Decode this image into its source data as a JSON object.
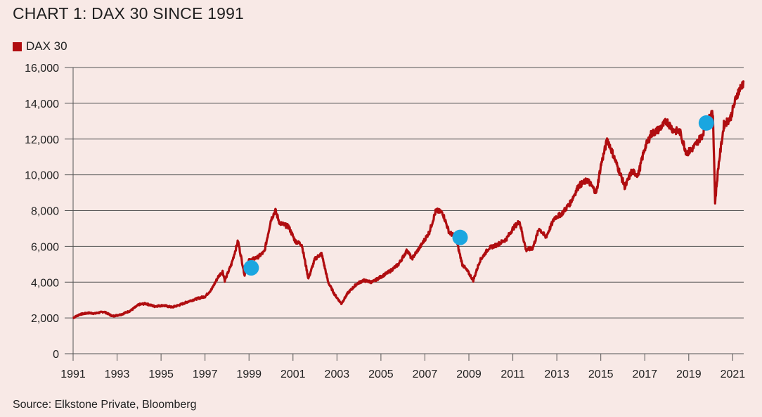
{
  "colors": {
    "background": "#f8e9e6",
    "series": "#b00d10",
    "marker": "#1aa6e0",
    "grid": "#555555"
  },
  "chart_data": {
    "type": "line",
    "title": "CHART 1: DAX 30 SINCE 1991",
    "source": "Source: Elkstone Private, Bloomberg",
    "xlabel": "",
    "ylabel": "",
    "xlim": [
      1991,
      2021.5
    ],
    "ylim": [
      0,
      16000
    ],
    "x_ticks": [
      1991,
      1993,
      1995,
      1997,
      1999,
      2001,
      2003,
      2005,
      2007,
      2009,
      2011,
      2013,
      2015,
      2017,
      2019,
      2021
    ],
    "y_ticks": [
      0,
      2000,
      4000,
      6000,
      8000,
      10000,
      12000,
      14000,
      16000
    ],
    "y_tick_labels": [
      "0",
      "2,000",
      "4,000",
      "6,000",
      "8,000",
      "10,000",
      "12,000",
      "14,000",
      "16,000"
    ],
    "grid": "horizontal",
    "legend_position": "top-left",
    "series": [
      {
        "name": "DAX 30",
        "points": [
          [
            1991.0,
            2000
          ],
          [
            1991.3,
            2200
          ],
          [
            1991.7,
            2280
          ],
          [
            1992.0,
            2250
          ],
          [
            1992.4,
            2350
          ],
          [
            1992.8,
            2100
          ],
          [
            1993.2,
            2200
          ],
          [
            1993.6,
            2400
          ],
          [
            1994.0,
            2750
          ],
          [
            1994.3,
            2800
          ],
          [
            1994.7,
            2650
          ],
          [
            1995.1,
            2700
          ],
          [
            1995.5,
            2600
          ],
          [
            1995.9,
            2750
          ],
          [
            1996.3,
            2950
          ],
          [
            1996.7,
            3100
          ],
          [
            1997.0,
            3200
          ],
          [
            1997.3,
            3600
          ],
          [
            1997.6,
            4300
          ],
          [
            1997.8,
            4600
          ],
          [
            1997.9,
            4100
          ],
          [
            1998.2,
            5000
          ],
          [
            1998.5,
            6300
          ],
          [
            1998.8,
            4400
          ],
          [
            1999.0,
            5200
          ],
          [
            1999.4,
            5400
          ],
          [
            1999.7,
            5700
          ],
          [
            2000.0,
            7500
          ],
          [
            2000.2,
            8000
          ],
          [
            2000.4,
            7300
          ],
          [
            2000.8,
            7100
          ],
          [
            2001.1,
            6300
          ],
          [
            2001.4,
            6100
          ],
          [
            2001.7,
            4200
          ],
          [
            2002.0,
            5300
          ],
          [
            2002.3,
            5600
          ],
          [
            2002.6,
            4000
          ],
          [
            2002.9,
            3300
          ],
          [
            2003.2,
            2800
          ],
          [
            2003.5,
            3400
          ],
          [
            2003.9,
            3900
          ],
          [
            2004.2,
            4100
          ],
          [
            2004.6,
            4000
          ],
          [
            2005.0,
            4300
          ],
          [
            2005.4,
            4600
          ],
          [
            2005.8,
            5000
          ],
          [
            2006.2,
            5800
          ],
          [
            2006.4,
            5300
          ],
          [
            2006.8,
            6000
          ],
          [
            2007.2,
            6800
          ],
          [
            2007.5,
            8000
          ],
          [
            2007.8,
            7900
          ],
          [
            2008.1,
            6800
          ],
          [
            2008.4,
            6500
          ],
          [
            2008.7,
            5000
          ],
          [
            2009.0,
            4500
          ],
          [
            2009.2,
            4100
          ],
          [
            2009.5,
            5200
          ],
          [
            2009.9,
            5900
          ],
          [
            2010.3,
            6100
          ],
          [
            2010.7,
            6400
          ],
          [
            2011.0,
            7000
          ],
          [
            2011.3,
            7400
          ],
          [
            2011.6,
            5800
          ],
          [
            2011.9,
            5900
          ],
          [
            2012.2,
            7000
          ],
          [
            2012.5,
            6500
          ],
          [
            2012.9,
            7600
          ],
          [
            2013.2,
            7800
          ],
          [
            2013.6,
            8400
          ],
          [
            2014.0,
            9400
          ],
          [
            2014.4,
            9700
          ],
          [
            2014.8,
            9000
          ],
          [
            2015.0,
            10500
          ],
          [
            2015.3,
            12000
          ],
          [
            2015.6,
            11000
          ],
          [
            2015.9,
            10000
          ],
          [
            2016.1,
            9300
          ],
          [
            2016.4,
            10200
          ],
          [
            2016.7,
            10000
          ],
          [
            2017.0,
            11500
          ],
          [
            2017.3,
            12300
          ],
          [
            2017.6,
            12500
          ],
          [
            2018.0,
            13000
          ],
          [
            2018.3,
            12500
          ],
          [
            2018.6,
            12400
          ],
          [
            2018.9,
            11200
          ],
          [
            2019.2,
            11500
          ],
          [
            2019.6,
            12200
          ],
          [
            2019.9,
            13200
          ],
          [
            2020.1,
            13400
          ],
          [
            2020.2,
            8500
          ],
          [
            2020.35,
            10500
          ],
          [
            2020.6,
            12800
          ],
          [
            2020.9,
            13200
          ],
          [
            2021.2,
            14500
          ],
          [
            2021.5,
            15200
          ]
        ]
      }
    ],
    "markers": [
      {
        "x": 1999.1,
        "y": 4800
      },
      {
        "x": 2008.6,
        "y": 6500
      },
      {
        "x": 2019.8,
        "y": 12900
      }
    ]
  }
}
